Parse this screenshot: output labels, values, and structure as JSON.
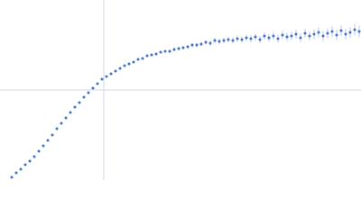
{
  "chart_data": {
    "type": "scatter",
    "color": "#4472c4",
    "error_color": "#a9bde6",
    "xlim": [
      -115,
      285
    ],
    "ylim": [
      -100,
      100
    ],
    "xticks": [
      0
    ],
    "yticks": [
      0
    ],
    "grid": true,
    "x": [
      -102,
      -97,
      -92,
      -87,
      -82,
      -77,
      -72,
      -67,
      -62,
      -57,
      -52,
      -47,
      -42,
      -37,
      -32,
      -27,
      -22,
      -17,
      -12,
      -7,
      -2,
      3,
      8,
      13,
      18,
      23,
      28,
      33,
      38,
      43,
      48,
      53,
      58,
      63,
      68,
      73,
      78,
      83,
      88,
      93,
      98,
      103,
      108,
      113,
      118,
      123,
      128,
      133,
      138,
      143,
      148,
      153,
      158,
      163,
      168,
      173,
      178,
      183,
      188,
      193,
      198,
      203,
      208,
      213,
      218,
      223,
      228,
      233,
      238,
      243,
      248,
      253,
      258,
      263,
      268,
      273,
      278,
      283
    ],
    "values": [
      -97,
      -92,
      -88,
      -83,
      -79,
      -74,
      -68,
      -62,
      -56,
      -50,
      -43,
      -37,
      -31,
      -25,
      -19,
      -14,
      -8,
      -3,
      2,
      7,
      12,
      15,
      18,
      21,
      24,
      27,
      29,
      31,
      34,
      35,
      38,
      39,
      40,
      42,
      43,
      43,
      45,
      46,
      47,
      48,
      50,
      50,
      51,
      53,
      52,
      55,
      54,
      55,
      56,
      55,
      57,
      56,
      58,
      57,
      59,
      56,
      60,
      58,
      60,
      57,
      61,
      59,
      60,
      62,
      58,
      63,
      60,
      62,
      64,
      60,
      63,
      65,
      61,
      66,
      62,
      64,
      67,
      65
    ],
    "errors": [
      0.5,
      0.5,
      0.5,
      0.5,
      0.5,
      0.5,
      0.5,
      0.5,
      0.5,
      0.5,
      0.5,
      0.5,
      0.5,
      0.5,
      0.5,
      0.5,
      0.5,
      0.5,
      0.5,
      0.5,
      0.5,
      0.8,
      0.8,
      0.8,
      1,
      1,
      1,
      1,
      1.2,
      1.2,
      1.2,
      1.5,
      1.5,
      1.5,
      1.5,
      2,
      2,
      2,
      2,
      2,
      2.5,
      2.5,
      2.5,
      2.5,
      3,
      3,
      3,
      3,
      3,
      3.5,
      3.5,
      3.5,
      3.5,
      4,
      4,
      4,
      4,
      4,
      4.5,
      4.5,
      4.5,
      4.5,
      5,
      5,
      5,
      5,
      5,
      5.5,
      5.5,
      5.5,
      5.5,
      6,
      6,
      6,
      6,
      6,
      6.5,
      6.5
    ]
  }
}
